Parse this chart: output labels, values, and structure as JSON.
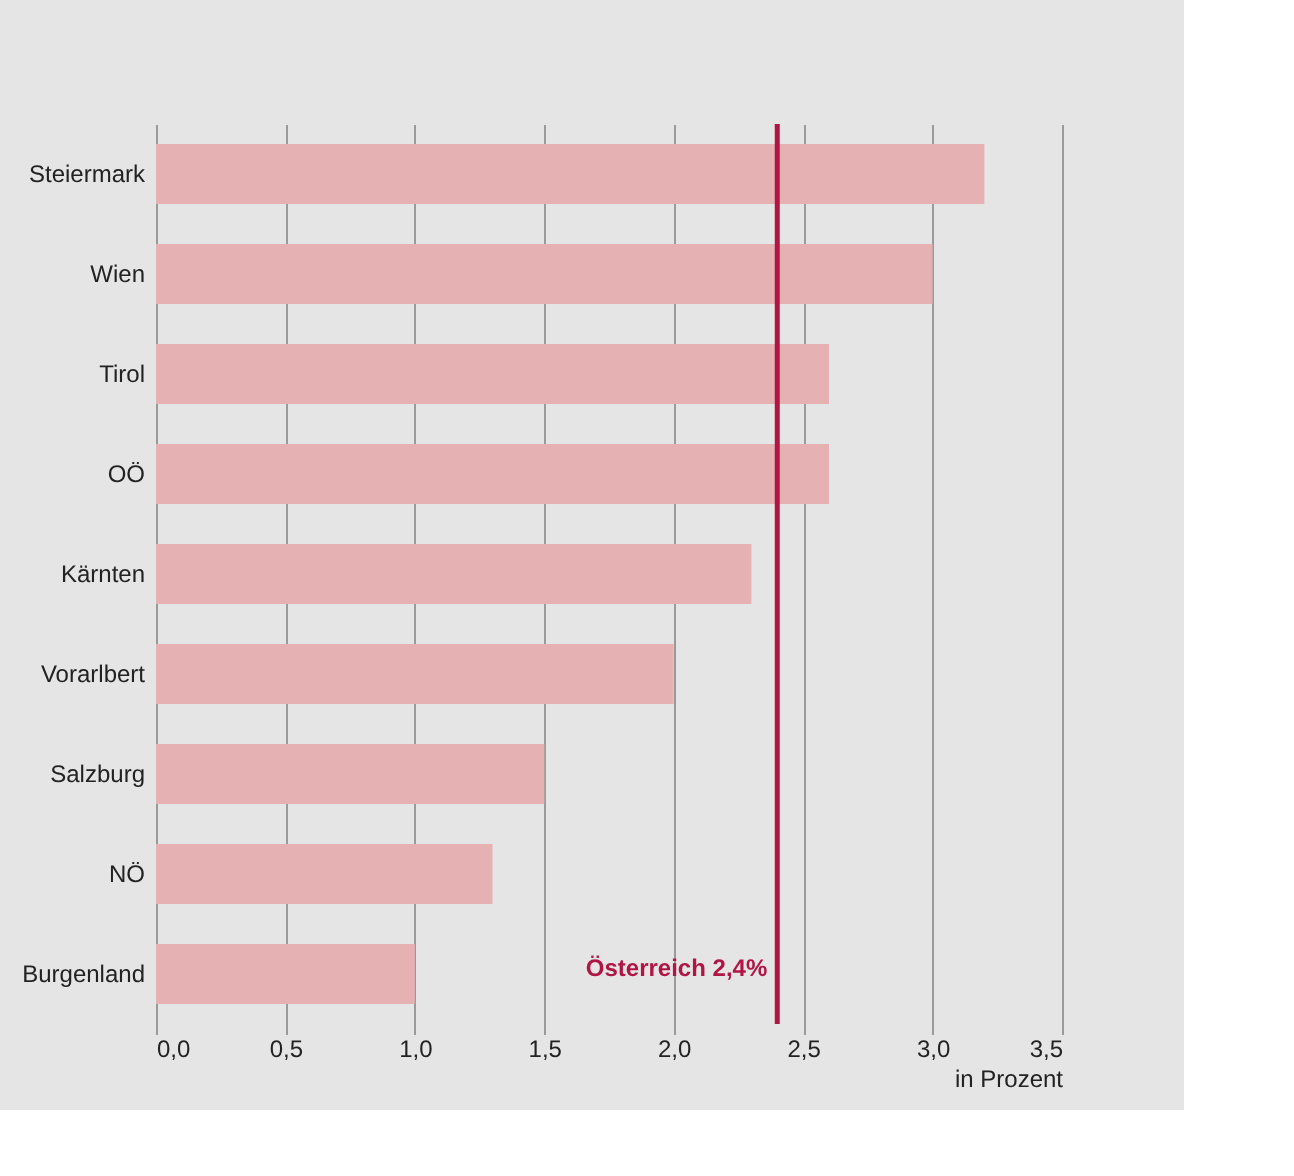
{
  "chart_data": {
    "type": "bar",
    "orientation": "horizontal",
    "xlabel": "in Prozent",
    "categories": [
      "Steiermark",
      "Wien",
      "Tirol",
      "OÖ",
      "Kärnten",
      "Vorarlbert",
      "Salzburg",
      "NÖ",
      "Burgenland"
    ],
    "values": [
      3.2,
      3.0,
      2.6,
      2.6,
      2.3,
      2.0,
      1.5,
      1.3,
      1.0
    ],
    "color": "#e5b1b3",
    "xlim": [
      0,
      3.5
    ],
    "xticks": [
      {
        "value": 0,
        "label": "0,0"
      },
      {
        "value": 0.5,
        "label": "0,5"
      },
      {
        "value": 1,
        "label": "1,0"
      },
      {
        "value": 1.5,
        "label": "1,5"
      },
      {
        "value": 2,
        "label": "2,0"
      },
      {
        "value": 2.5,
        "label": "2,5"
      },
      {
        "value": 3,
        "label": "3,0"
      },
      {
        "value": 3.5,
        "label": "3,5"
      }
    ],
    "grid": "x",
    "ref_lines": [
      {
        "axis": "x",
        "value": 2.4,
        "label": "Österreich 2,4%",
        "color": "#b01546"
      }
    ]
  }
}
